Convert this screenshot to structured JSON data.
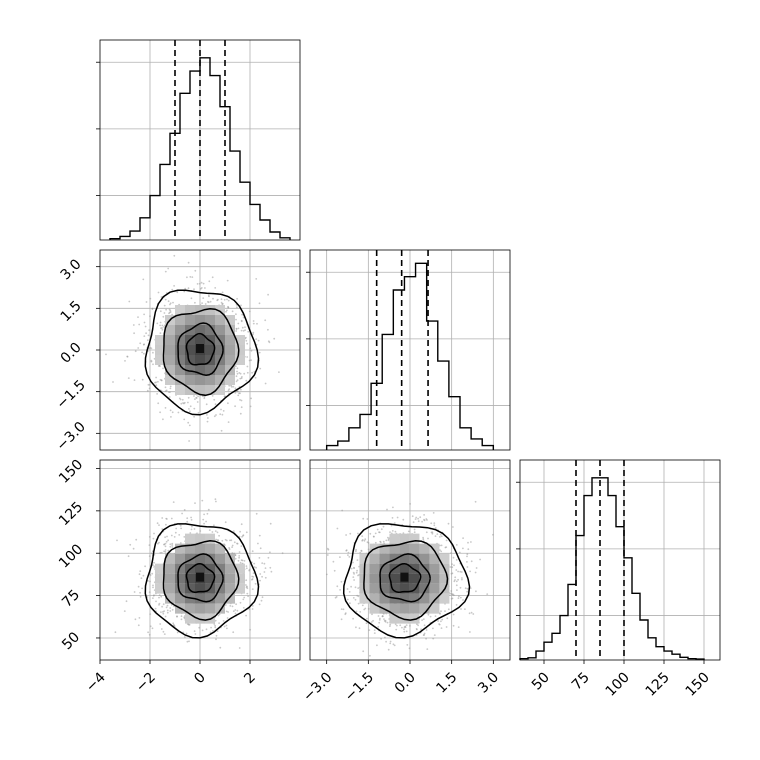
{
  "chart_data": {
    "type": "corner",
    "grid": true,
    "panels": [
      {
        "id": "hist-0",
        "type": "histogram",
        "row": 0,
        "col": 0,
        "xlim": [
          -4,
          4
        ],
        "ylim": [
          0,
          0.45
        ],
        "bins": [
          -3.6,
          -3.2,
          -2.8,
          -2.4,
          -2.0,
          -1.6,
          -1.2,
          -0.8,
          -0.4,
          0.0,
          0.4,
          0.8,
          1.2,
          1.6,
          2.0,
          2.4,
          2.8,
          3.2,
          3.6
        ],
        "counts": [
          0.003,
          0.008,
          0.02,
          0.05,
          0.1,
          0.17,
          0.24,
          0.33,
          0.38,
          0.41,
          0.37,
          0.3,
          0.2,
          0.13,
          0.08,
          0.045,
          0.018,
          0.005
        ],
        "quantiles": [
          -1.0,
          0.0,
          1.0
        ],
        "yticks": [
          0.1,
          0.25,
          0.4
        ]
      },
      {
        "id": "hist-1",
        "type": "histogram",
        "row": 1,
        "col": 1,
        "xlim": [
          -3.6,
          3.6
        ],
        "ylim": [
          0,
          0.45
        ],
        "bins": [
          -3.0,
          -2.6,
          -2.2,
          -1.8,
          -1.4,
          -1.0,
          -0.6,
          -0.2,
          0.2,
          0.6,
          1.0,
          1.4,
          1.8,
          2.2,
          2.6,
          3.0
        ],
        "counts": [
          0.01,
          0.02,
          0.05,
          0.08,
          0.15,
          0.26,
          0.36,
          0.39,
          0.42,
          0.29,
          0.2,
          0.12,
          0.05,
          0.025,
          0.01
        ],
        "quantiles": [
          -1.2,
          -0.3,
          0.65
        ],
        "yticks": [
          0.1,
          0.25,
          0.4
        ]
      },
      {
        "id": "hist-2",
        "type": "histogram",
        "row": 2,
        "col": 2,
        "xlim": [
          35,
          160
        ],
        "ylim": [
          0,
          0.045
        ],
        "bins": [
          35,
          40,
          45,
          50,
          55,
          60,
          65,
          70,
          75,
          80,
          85,
          90,
          95,
          100,
          105,
          110,
          115,
          120,
          125,
          130,
          135,
          140,
          145,
          150
        ],
        "counts": [
          0.0003,
          0.0005,
          0.002,
          0.004,
          0.006,
          0.01,
          0.017,
          0.028,
          0.037,
          0.041,
          0.041,
          0.037,
          0.03,
          0.023,
          0.015,
          0.009,
          0.005,
          0.003,
          0.002,
          0.0013,
          0.0006,
          0.0003,
          0.0002
        ],
        "quantiles": [
          70,
          85,
          100
        ],
        "yticks": [
          0.01,
          0.025,
          0.04
        ]
      },
      {
        "id": "scatter-1-0",
        "type": "density-contour",
        "row": 1,
        "col": 0,
        "xlim": [
          -4,
          4
        ],
        "ylim": [
          -3.6,
          3.6
        ],
        "center": [
          0.0,
          0.0
        ],
        "spread": [
          1.0,
          1.0
        ],
        "contour_radii": [
          2.2,
          1.5,
          0.9,
          0.55
        ],
        "contour_notes": "inner level pinched around (0.0, 0.2)"
      },
      {
        "id": "scatter-2-0",
        "type": "density-contour",
        "row": 2,
        "col": 0,
        "xlim": [
          -4,
          4
        ],
        "ylim": [
          37,
          155
        ],
        "center": [
          0.0,
          85.0
        ],
        "spread": [
          1.0,
          15.0
        ],
        "contour_radii": [
          2.2,
          1.5,
          0.9,
          0.55
        ]
      },
      {
        "id": "scatter-2-1",
        "type": "density-contour",
        "row": 2,
        "col": 1,
        "xlim": [
          -3.6,
          3.6
        ],
        "ylim": [
          37,
          155
        ],
        "center": [
          -0.2,
          85.0
        ],
        "spread": [
          1.0,
          15.0
        ],
        "contour_radii": [
          2.2,
          1.5,
          0.9,
          0.55
        ]
      }
    ],
    "axes": {
      "col0_xticks": [
        "−4",
        "−2",
        "0",
        "2"
      ],
      "col0_xtick_values": [
        -4,
        -2,
        0,
        2
      ],
      "col1_xticks": [
        "−3.0",
        "−1.5",
        "0.0",
        "1.5",
        "3.0"
      ],
      "col1_xtick_values": [
        -3.0,
        -1.5,
        0.0,
        1.5,
        3.0
      ],
      "col2_xticks": [
        "50",
        "75",
        "100",
        "125",
        "150"
      ],
      "col2_xtick_values": [
        50,
        75,
        100,
        125,
        150
      ],
      "row1_yticks": [
        "3.0",
        "1.5",
        "0.0",
        "−1.5",
        "−3.0"
      ],
      "row1_ytick_values": [
        3.0,
        1.5,
        0.0,
        -1.5,
        -3.0
      ],
      "row2_yticks": [
        "150",
        "125",
        "100",
        "75",
        "50"
      ],
      "row2_ytick_values": [
        150,
        125,
        100,
        75,
        50
      ]
    }
  }
}
